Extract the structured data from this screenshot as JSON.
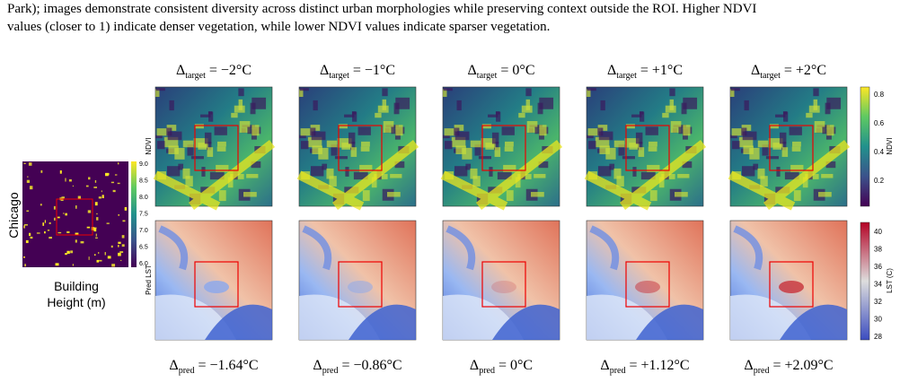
{
  "caption_top": [
    "Park); images demonstrate consistent diversity across distinct urban morphologies while preserving context outside the ROI. Higher NDVI",
    "values (closer to 1) indicate denser vegetation, while lower NDVI values indicate sparser vegetation."
  ],
  "city": "Chicago",
  "building": {
    "label": [
      "Building",
      "Height (m)"
    ],
    "ticks": [
      "9.0",
      "8.5",
      "8.0",
      "7.5",
      "7.0",
      "6.5",
      "6.0"
    ]
  },
  "columns": [
    {
      "target": {
        "symbol": "Δ",
        "sub": "target",
        "rest": " = −2°C"
      },
      "pred": {
        "symbol": "Δ",
        "sub": "pred",
        "rest": " = −1.64°C"
      }
    },
    {
      "target": {
        "symbol": "Δ",
        "sub": "target",
        "rest": " = −1°C"
      },
      "pred": {
        "symbol": "Δ",
        "sub": "pred",
        "rest": " = −0.86°C"
      }
    },
    {
      "target": {
        "symbol": "Δ",
        "sub": "target",
        "rest": " = 0°C"
      },
      "pred": {
        "symbol": "Δ",
        "sub": "pred",
        "rest": " = 0°C"
      }
    },
    {
      "target": {
        "symbol": "Δ",
        "sub": "target",
        "rest": " = +1°C"
      },
      "pred": {
        "symbol": "Δ",
        "sub": "pred",
        "rest": " = +1.12°C"
      }
    },
    {
      "target": {
        "symbol": "Δ",
        "sub": "target",
        "rest": " = +2°C"
      },
      "pred": {
        "symbol": "Δ",
        "sub": "pred",
        "rest": " = +2.09°C"
      }
    }
  ],
  "rows": [
    "NDVI",
    "Pred LST"
  ],
  "ndvi_colorbar": {
    "label": "NDVI",
    "ticks": [
      "0.8",
      "0.6",
      "0.4",
      "0.2"
    ]
  },
  "lst_colorbar": {
    "label": "LST (C)",
    "ticks": [
      "40",
      "38",
      "36",
      "34",
      "32",
      "30",
      "28"
    ]
  }
}
